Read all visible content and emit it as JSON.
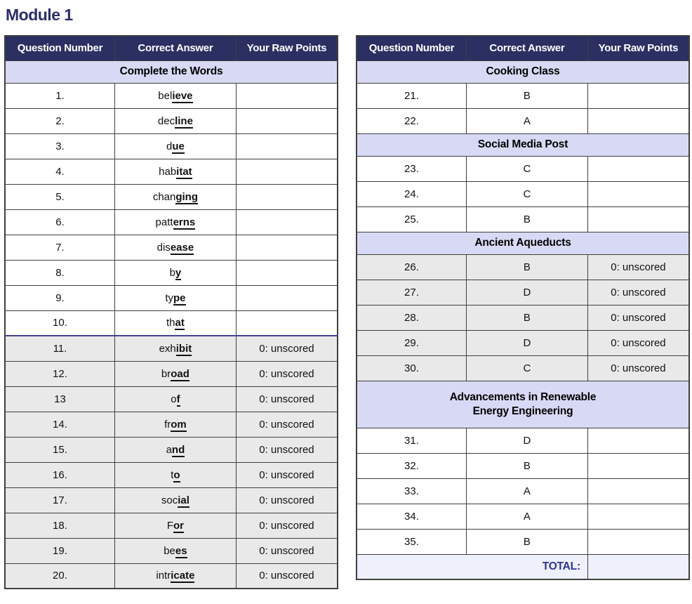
{
  "title": "Module 1",
  "colors": {
    "header_bg": "#2c2f61",
    "header_text": "#ffffff",
    "section_bg": "#d8daf5",
    "unscored_bg": "#e9e9e9",
    "total_bg": "#eef0fb",
    "title_color": "#2c2e6a",
    "total_text": "#2f3290",
    "divider": "#42428f",
    "border": "#3f3f3f"
  },
  "columns": [
    "Question Number",
    "Correct Answer",
    "Your Raw Points"
  ],
  "left_table": {
    "sections": [
      {
        "title": "Complete the Words",
        "rows": [
          {
            "num": "1.",
            "prefix": "bel",
            "suffix": "ieve",
            "points": ""
          },
          {
            "num": "2.",
            "prefix": "dec",
            "suffix": "line",
            "points": ""
          },
          {
            "num": "3.",
            "prefix": "d",
            "suffix": "ue",
            "points": ""
          },
          {
            "num": "4.",
            "prefix": "hab",
            "suffix": "itat",
            "points": ""
          },
          {
            "num": "5.",
            "prefix": "chan",
            "suffix": "ging",
            "points": ""
          },
          {
            "num": "6.",
            "prefix": "patt",
            "suffix": "erns",
            "points": ""
          },
          {
            "num": "7.",
            "prefix": "dis",
            "suffix": "ease",
            "points": ""
          },
          {
            "num": "8.",
            "prefix": "b",
            "suffix": "y",
            "points": ""
          },
          {
            "num": "9.",
            "prefix": "ty",
            "suffix": "pe",
            "points": ""
          },
          {
            "num": "10.",
            "prefix": "th",
            "suffix": "at",
            "points": "",
            "divider_after": true
          },
          {
            "num": "11.",
            "prefix": "exh",
            "suffix": "ibit",
            "points": "0: unscored",
            "shaded": true
          },
          {
            "num": "12.",
            "prefix": "br",
            "suffix": "oad",
            "points": "0: unscored",
            "shaded": true
          },
          {
            "num": "13",
            "prefix": "o",
            "suffix": "f",
            "points": "0: unscored",
            "shaded": true
          },
          {
            "num": "14.",
            "prefix": "fr",
            "suffix": "om",
            "points": "0: unscored",
            "shaded": true
          },
          {
            "num": "15.",
            "prefix": "a",
            "suffix": "nd",
            "points": "0: unscored",
            "shaded": true
          },
          {
            "num": "16.",
            "prefix": "t",
            "suffix": "o",
            "points": "0: unscored",
            "shaded": true
          },
          {
            "num": "17.",
            "prefix": "soc",
            "suffix": "ial",
            "points": "0: unscored",
            "shaded": true
          },
          {
            "num": "18.",
            "prefix": "F",
            "suffix": "or",
            "points": "0: unscored",
            "shaded": true
          },
          {
            "num": "19.",
            "prefix": "be",
            "suffix": "es",
            "points": "0: unscored",
            "shaded": true
          },
          {
            "num": "20.",
            "prefix": "intr",
            "suffix": "icate",
            "points": "0: unscored",
            "shaded": true
          }
        ]
      }
    ]
  },
  "right_table": {
    "sections": [
      {
        "title": "Cooking Class",
        "rows": [
          {
            "num": "21.",
            "answer": "B",
            "points": ""
          },
          {
            "num": "22.",
            "answer": "A",
            "points": ""
          }
        ]
      },
      {
        "title": "Social Media Post",
        "rows": [
          {
            "num": "23.",
            "answer": "C",
            "points": ""
          },
          {
            "num": "24.",
            "answer": "C",
            "points": ""
          },
          {
            "num": "25.",
            "answer": "B",
            "points": ""
          }
        ]
      },
      {
        "title": "Ancient Aqueducts",
        "rows": [
          {
            "num": "26.",
            "answer": "B",
            "points": "0: unscored",
            "shaded": true
          },
          {
            "num": "27.",
            "answer": "D",
            "points": "0: unscored",
            "shaded": true
          },
          {
            "num": "28.",
            "answer": "B",
            "points": "0: unscored",
            "shaded": true
          },
          {
            "num": "29.",
            "answer": "D",
            "points": "0: unscored",
            "shaded": true
          },
          {
            "num": "30.",
            "answer": "C",
            "points": "0: unscored",
            "shaded": true
          }
        ]
      },
      {
        "title_lines": [
          "Advancements in Renewable",
          "Energy Engineering"
        ],
        "rows": [
          {
            "num": "31.",
            "answer": "D",
            "points": ""
          },
          {
            "num": "32.",
            "answer": "B",
            "points": ""
          },
          {
            "num": "33.",
            "answer": "A",
            "points": ""
          },
          {
            "num": "34.",
            "answer": "A",
            "points": ""
          },
          {
            "num": "35.",
            "answer": "B",
            "points": ""
          }
        ]
      }
    ],
    "total": {
      "label": "TOTAL:",
      "value": ""
    }
  }
}
